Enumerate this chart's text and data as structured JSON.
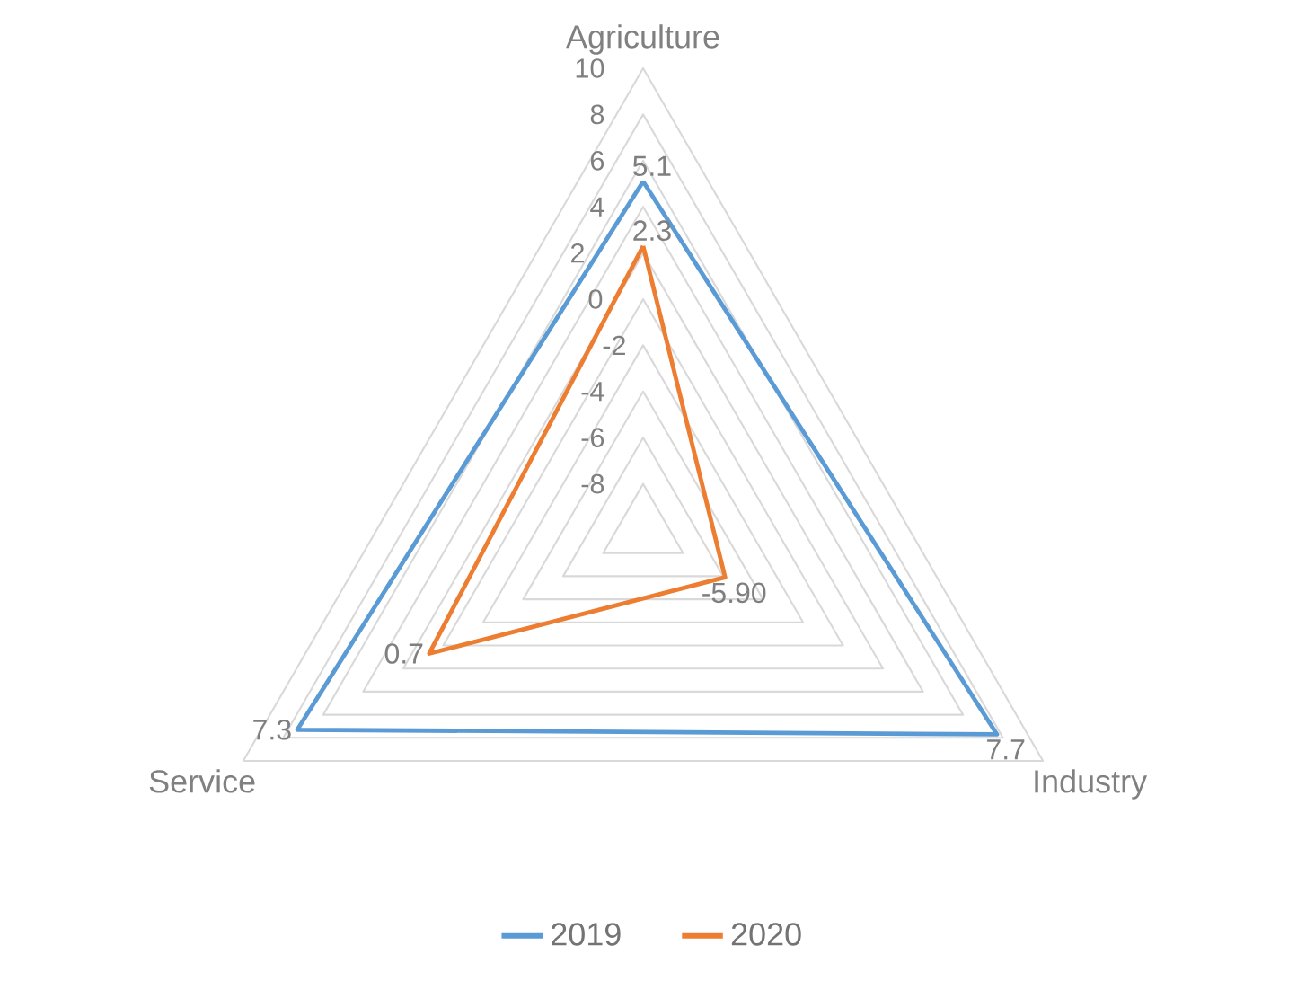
{
  "chart_data": {
    "type": "radar",
    "categories": [
      "Agriculture",
      "Industry",
      "Service"
    ],
    "series": [
      {
        "name": "2019",
        "color": "#5b9bd5",
        "values": [
          5.1,
          7.7,
          7.3
        ],
        "value_labels": [
          "5.1",
          "7.7",
          "7.3"
        ]
      },
      {
        "name": "2020",
        "color": "#ed7d31",
        "values": [
          2.3,
          -5.9,
          0.7
        ],
        "value_labels": [
          "2.3",
          "-5.90",
          "0.7"
        ]
      }
    ],
    "ylim": [
      -10,
      10
    ],
    "yticks": [
      -8,
      -6,
      -4,
      -2,
      0,
      2,
      4,
      6,
      8,
      10
    ],
    "grid": true,
    "legend": "bottom"
  }
}
